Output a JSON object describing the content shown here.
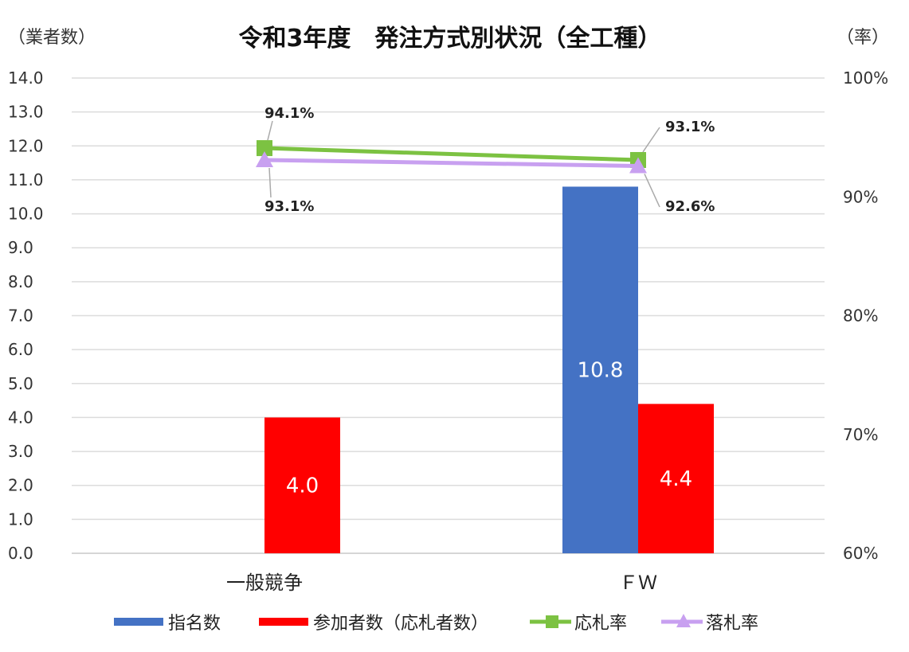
{
  "chart_data": {
    "type": "bar",
    "title": "令和3年度　発注方式別状況（全工種）",
    "y_left_unit": "（業者数）",
    "y_right_unit": "（率）",
    "categories": [
      "一般競争",
      "ＦＷ"
    ],
    "y_left_range": [
      0,
      14
    ],
    "y_left_ticks": [
      "0.0",
      "1.0",
      "2.0",
      "3.0",
      "4.0",
      "5.0",
      "6.0",
      "7.0",
      "8.0",
      "9.0",
      "10.0",
      "11.0",
      "12.0",
      "13.0",
      "14.0"
    ],
    "y_right_range": [
      0.6,
      1.0
    ],
    "y_right_ticks": [
      "60%",
      "70%",
      "80%",
      "90%",
      "100%"
    ],
    "grid": true,
    "legend_position": "bottom",
    "series": [
      {
        "name": "指名数",
        "kind": "bar",
        "axis": "left",
        "color": "#4472C4",
        "values": [
          null,
          10.8
        ],
        "labels": [
          "",
          "10.8"
        ]
      },
      {
        "name": "参加者数（応札者数）",
        "kind": "bar",
        "axis": "left",
        "color": "#FF0000",
        "values": [
          4.0,
          4.4
        ],
        "labels": [
          "4.0",
          "4.4"
        ]
      },
      {
        "name": "応札率",
        "kind": "line",
        "axis": "right",
        "color": "#7CC242",
        "marker": "square",
        "values": [
          0.941,
          0.931
        ],
        "labels": [
          "94.1%",
          "93.1%"
        ]
      },
      {
        "name": "落札率",
        "kind": "line",
        "axis": "right",
        "color": "#C8A0F0",
        "marker": "triangle",
        "values": [
          0.931,
          0.926
        ],
        "labels": [
          "93.1%",
          "92.6%"
        ]
      }
    ]
  }
}
